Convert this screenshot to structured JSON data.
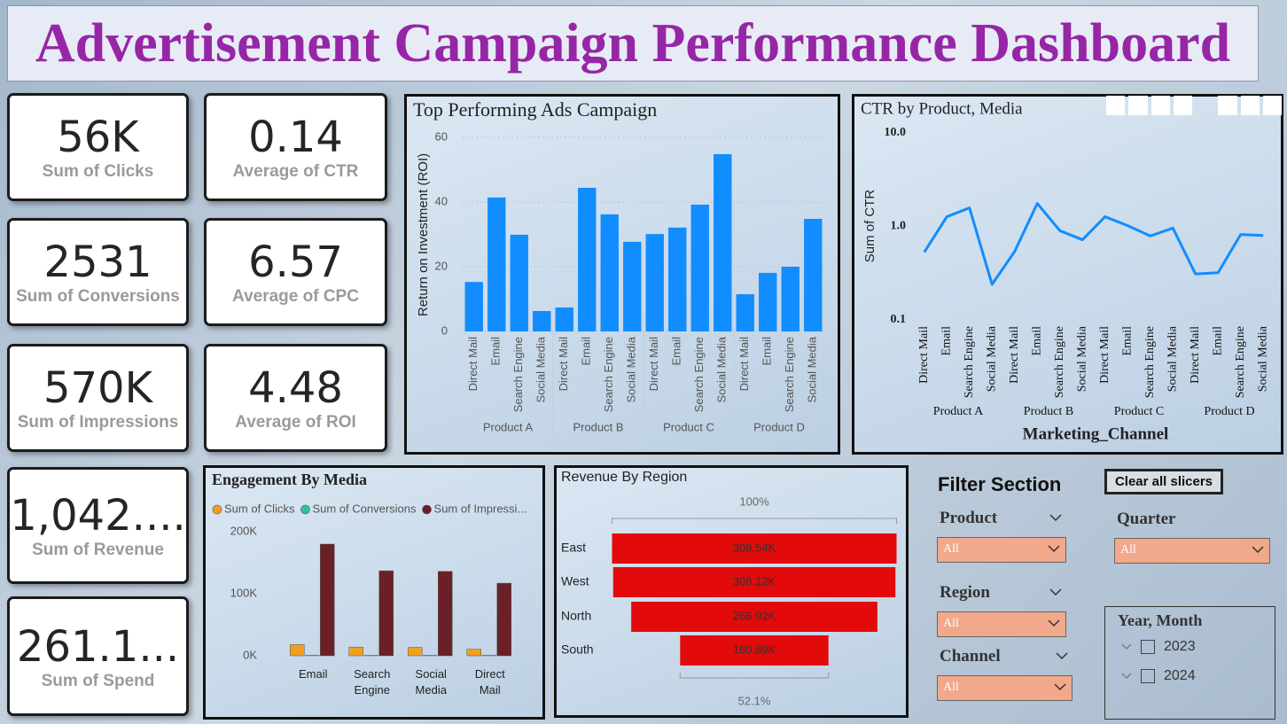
{
  "title": "Advertisement Campaign Performance Dashboard",
  "kpis": [
    {
      "value": "56K",
      "label": "Sum of Clicks"
    },
    {
      "value": 0.14,
      "label": "Average of CTR"
    },
    {
      "value": 2531,
      "label": "Sum of Conversions"
    },
    {
      "value": 6.57,
      "label": "Average of CPC"
    },
    {
      "value": "570K",
      "label": "Sum of Impressions"
    },
    {
      "value": 4.48,
      "label": "Average of ROI"
    },
    {
      "value": "1,042....",
      "label": "Sum of Revenue"
    },
    {
      "value": "261.1...",
      "label": "Sum of Spend"
    }
  ],
  "chart_data": [
    {
      "type": "bar",
      "title": "Top Performing Ads Campaign",
      "ylabel": "Return on Investment (ROI)",
      "color": "#118dff",
      "grid": true,
      "groups": [
        "Product A",
        "Product B",
        "Product C",
        "Product D"
      ],
      "categories": [
        "Direct Mail",
        "Email",
        "Search Engine",
        "Social Media",
        "Direct Mail",
        "Email",
        "Search Engine",
        "Social Media",
        "Direct Mail",
        "Email",
        "Search Engine",
        "Social Media",
        "Direct Mail",
        "Email",
        "Search Engine",
        "Social Media"
      ],
      "values": [
        15.3,
        41.4,
        29.9,
        6.3,
        7.4,
        44.4,
        36.2,
        27.7,
        30.1,
        32.1,
        39.2,
        54.8,
        11.5,
        18.1,
        20,
        34.8
      ],
      "ylim": [
        0,
        60
      ],
      "yticks": [
        0,
        20,
        40,
        60
      ]
    },
    {
      "type": "line",
      "title": "CTR by Product, Media",
      "ylabel": "Sum of CTR",
      "xlabel": "Marketing_Channel",
      "color": "#118dff",
      "grid": false,
      "yscale": "log",
      "groups": [
        "Product A",
        "Product B",
        "Product C",
        "Product D"
      ],
      "categories": [
        "Direct Mail",
        "Email",
        "Search Engine",
        "Social Media",
        "Direct Mail",
        "Email",
        "Search Engine",
        "Social Media",
        "Direct Mail",
        "Email",
        "Search Engine",
        "Social Media",
        "Direct Mail",
        "Email",
        "Search Engine",
        "Social Media"
      ],
      "values": [
        0.53,
        1.27,
        1.58,
        0.24,
        0.54,
        1.76,
        0.9,
        0.72,
        1.27,
        1.02,
        0.79,
        0.96,
        0.31,
        0.32,
        0.82,
        0.8
      ],
      "ylim": [
        0.1,
        10
      ],
      "yticks": [
        0.1,
        {
          "value": 1,
          "label": "1.0"
        },
        {
          "value": 10,
          "label": "10.0"
        }
      ]
    },
    {
      "type": "bar",
      "title": "Engagement By Media",
      "grid": false,
      "categories": [
        "Email",
        "Search Engine",
        "Social Media",
        "Direct Mail"
      ],
      "series": [
        {
          "name": "Sum of Clicks",
          "color": "#f0a01e",
          "values": [
            18000,
            14000,
            13500,
            10500
          ]
        },
        {
          "name": "Sum of Conversions",
          "color": "#2cc49a",
          "values": [
            650,
            620,
            640,
            620
          ]
        },
        {
          "name": "Sum of Impressi...",
          "color": "#6b2027",
          "values": [
            180000,
            137000,
            136000,
            117000
          ]
        }
      ],
      "ylim": [
        0,
        200000
      ],
      "yticks": [
        {
          "value": 0,
          "label": "0K"
        },
        {
          "value": 100000,
          "label": "100K"
        },
        {
          "value": 200000,
          "label": "200K"
        }
      ]
    },
    {
      "type": "funnel",
      "title": "Revenue By Region",
      "color": "#e20a0a",
      "categories": [
        "East",
        "West",
        "North",
        "South"
      ],
      "values": [
        308540,
        306120,
        266920,
        160890
      ],
      "value_labels": [
        "308.54K",
        "306.12K",
        "266.92K",
        "160.89K"
      ],
      "top_label": "100%",
      "bottom_label": "52.1%"
    }
  ],
  "filters": {
    "title": "Filter Section",
    "clear": "Clear all slicers",
    "slicers": [
      {
        "label": "Product",
        "value": "All"
      },
      {
        "label": "Region",
        "value": "All"
      },
      {
        "label": "Channel",
        "value": "All"
      },
      {
        "label": "Quarter",
        "value": "All"
      }
    ],
    "date": {
      "label": "Year, Month",
      "items": [
        2023,
        2024
      ]
    }
  }
}
